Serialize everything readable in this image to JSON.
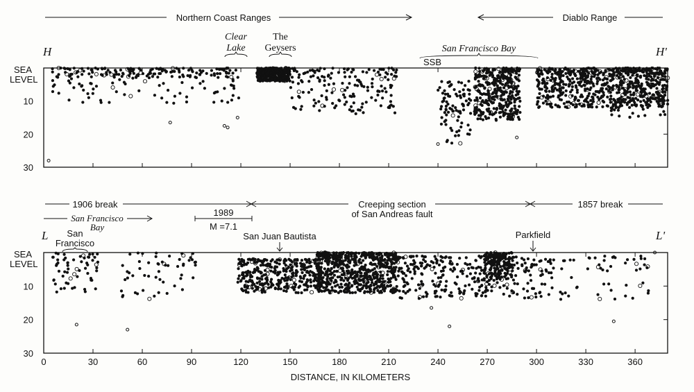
{
  "chart_data": [
    {
      "type": "scatter",
      "panel": "H-H'",
      "start_label": "H",
      "end_label": "H'",
      "regions": {
        "northern_coast_ranges": "Northern Coast Ranges",
        "diablo_range": "Diablo Range"
      },
      "annotations": {
        "clear_lake_1": "Clear",
        "clear_lake_2": "Lake",
        "geysers_1": "The",
        "geysers_2": "Geysers",
        "sf_bay": "San Francisco Bay",
        "ssb": "SSB"
      },
      "y_ticks": [
        "SEA",
        "10",
        "20",
        "30"
      ],
      "y_top_label_2": "LEVEL",
      "ylim": [
        0,
        30
      ],
      "xlim": [
        0,
        380
      ],
      "clusters": [
        [
          5,
          120,
          0,
          3,
          120
        ],
        [
          5,
          120,
          0,
          11,
          110
        ],
        [
          130,
          150,
          0,
          4,
          380
        ],
        [
          150,
          215,
          0,
          14,
          170
        ],
        [
          240,
          260,
          4,
          23,
          90
        ],
        [
          262,
          290,
          0,
          16,
          380
        ],
        [
          300,
          380,
          0,
          12,
          700
        ],
        [
          345,
          380,
          0,
          15,
          120
        ]
      ],
      "outliers": [
        [
          3,
          28
        ],
        [
          110,
          17.5
        ],
        [
          112,
          18
        ],
        [
          118,
          15
        ],
        [
          77,
          16.5
        ],
        [
          240,
          23
        ],
        [
          288,
          21
        ]
      ]
    },
    {
      "type": "scatter",
      "panel": "L-L'",
      "start_label": "L",
      "end_label": "L'",
      "regions": {
        "break_1906": "1906 break",
        "creeping_1": "Creeping section",
        "creeping_2": "of San Andreas fault",
        "break_1857": "1857 break",
        "sf_bay_1": "San Francisco",
        "sf_bay_2": "Bay",
        "eq_1989": "1989",
        "eq_1989_mag": "M =7.1"
      },
      "annotations": {
        "san_francisco_1": "San",
        "san_francisco_2": "Francisco",
        "san_juan_bautista": "San Juan Bautista",
        "parkfield": "Parkfield"
      },
      "y_ticks": [
        "SEA",
        "10",
        "20",
        "30"
      ],
      "y_top_label_2": "LEVEL",
      "ylim": [
        0,
        30
      ],
      "xlim": [
        0,
        380
      ],
      "x_ticks": [
        "0",
        "30",
        "60",
        "90",
        "120",
        "150",
        "180",
        "210",
        "240",
        "270",
        "300",
        "330",
        "360"
      ],
      "xlabel": "DISTANCE, IN KILOMETERS",
      "clusters": [
        [
          3,
          33,
          0,
          12,
          60
        ],
        [
          45,
          95,
          0,
          14,
          55
        ],
        [
          118,
          170,
          2,
          12,
          380
        ],
        [
          165,
          215,
          0,
          12,
          650
        ],
        [
          215,
          300,
          1,
          14,
          320
        ],
        [
          268,
          285,
          0,
          8,
          160
        ],
        [
          300,
          325,
          2,
          14,
          40
        ],
        [
          330,
          370,
          1,
          14,
          40
        ]
      ],
      "outliers": [
        [
          20,
          21.5
        ],
        [
          51,
          23
        ],
        [
          247,
          22
        ],
        [
          236,
          16.5
        ],
        [
          347,
          20.5
        ],
        [
          372,
          0
        ]
      ]
    }
  ]
}
